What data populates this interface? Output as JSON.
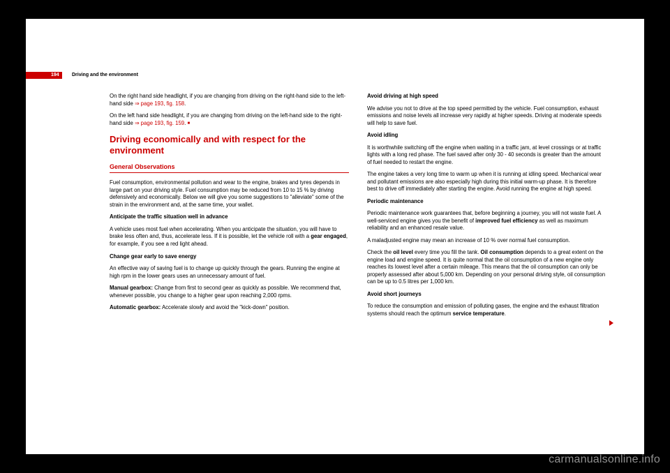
{
  "header": {
    "page_number": "194",
    "title": "Driving and the environment"
  },
  "left": {
    "p1a": "On the right hand side headlight, if you are changing from driving on the right-hand side to the left-hand side ",
    "p1ref": "⇒ page 193, fig. 158",
    "p1b": ".",
    "p2a": "On the left hand side headlight, if you are changing from driving on the left-hand side to the right-hand side ",
    "p2ref": "⇒ page 193, fig. 159",
    "p2b": ". ",
    "section_title": "Driving economically and with respect for the environment",
    "sub_title": "General Observations",
    "p3": "Fuel consumption, environmental pollution and wear to the engine, brakes and tyres depends in large part on your driving style. Fuel consumption may be reduced from 10 to 15 % by driving defensively and economically. Below we will give you some suggestions to \"alleviate\" some of the strain in the environment and, at the same time, your wallet.",
    "h1": "Anticipate the traffic situation well in advance",
    "p4a": "A vehicle uses most fuel when accelerating. When you anticipate the situation, you will have to brake less often and, thus, accelerate less. If it is possible, let the vehicle roll with a ",
    "p4b": "gear engaged",
    "p4c": ", for example, if you see a red light ahead.",
    "h2": "Change gear early to save energy",
    "p5": "An effective way of saving fuel is to change up quickly through the gears. Running the engine at high rpm in the lower gears uses an unnecessary amount of fuel.",
    "p6a": "Manual gearbox:",
    "p6b": " Change from first to second gear as quickly as possible. We recommend that, whenever possible, you change to a higher gear upon reaching 2,000 rpms.",
    "p7a": "Automatic gearbox:",
    "p7b": " Accelerate slowly and avoid the \"kick-down\" position."
  },
  "right": {
    "h1": "Avoid driving at high speed",
    "p1": "We advise you not to drive at the top speed permitted by the vehicle. Fuel consumption, exhaust emissions and noise levels all increase very rapidly at higher speeds. Driving at moderate speeds will help to save fuel.",
    "h2": "Avoid idling",
    "p2": "It is worthwhile switching off the engine when waiting in a traffic jam, at level crossings or at traffic lights with a long red phase. The fuel saved after only 30 - 40 seconds is greater than the amount of fuel needed to restart the engine.",
    "p3": "The engine takes a very long time to warm up when it is running at idling speed. Mechanical wear and pollutant emissions are also especially high during this initial warm-up phase. It is therefore best to drive off immediately after starting the engine. Avoid running the engine at high speed.",
    "h3": "Periodic maintenance",
    "p4a": "Periodic maintenance work guarantees that, before beginning a journey, you will not waste fuel. A well-serviced engine gives you the benefit of ",
    "p4b": "improved fuel efficiency",
    "p4c": " as well as maximum reliability and an enhanced resale value.",
    "p5": "A maladjusted engine may mean an increase of 10 % over normal fuel consumption.",
    "p6a": "Check the ",
    "p6b": "oil level",
    "p6c": " every time you fill the tank. ",
    "p6d": "Oil consumption",
    "p6e": " depends to a great extent on the engine load and engine speed. It is quite normal that the oil consumption of a new engine only reaches its lowest level after a certain mileage. This means that the oil consumption can only be properly assessed after about 5,000 km. Depending on your personal driving style, oil consumption can be up to 0.5 litres per 1,000 km.",
    "h4": "Avoid short journeys",
    "p7a": "To reduce the consumption and emission of polluting gases, the engine and the exhaust filtration systems should reach the optimum ",
    "p7b": "service temperature",
    "p7c": "."
  },
  "watermark": "carmanualsonline.info",
  "colors": {
    "accent": "#c00",
    "page": "#fff",
    "bg": "#000"
  }
}
